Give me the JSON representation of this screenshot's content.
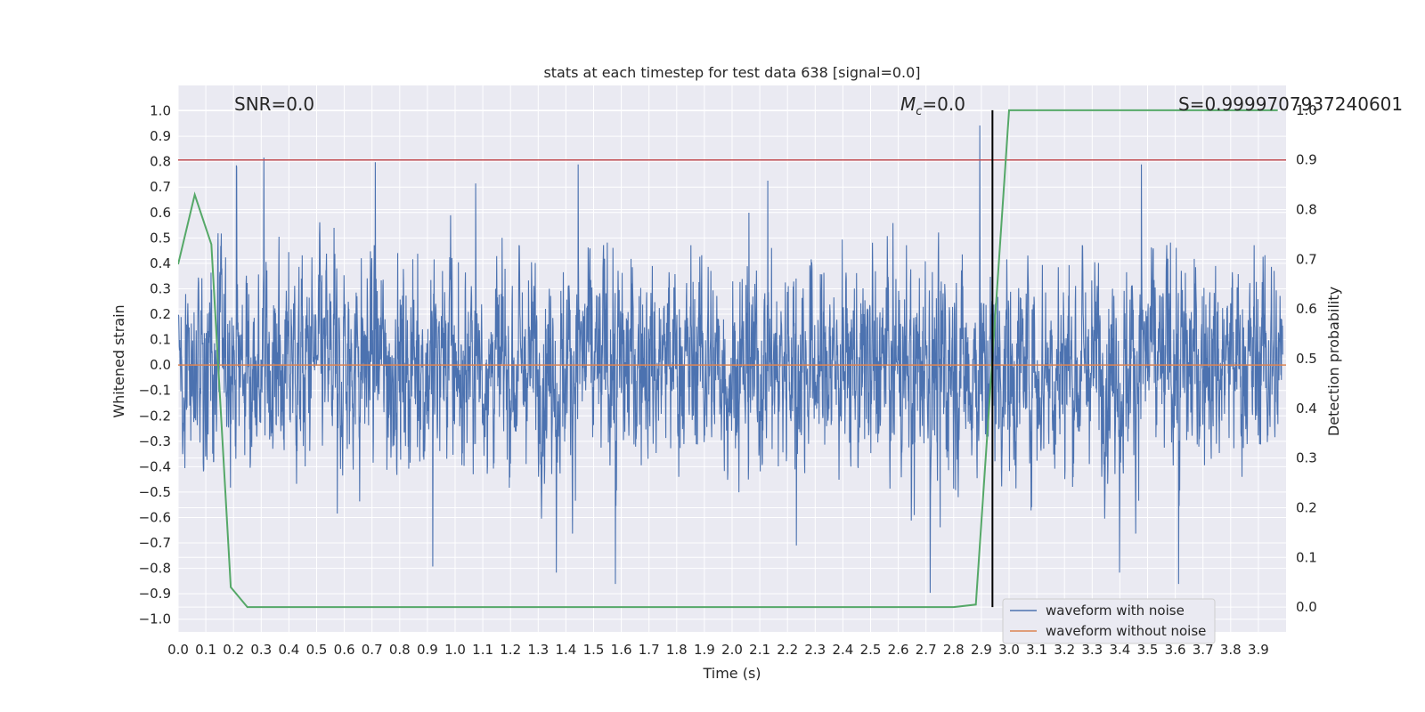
{
  "chart_data": {
    "type": "line",
    "title": "stats at each timestep for test data 638 [signal=0.0]",
    "xlabel": "Time (s)",
    "ylabel": "Whitened strain",
    "y2label": "Detection probability",
    "xlim": [
      0.0,
      4.0
    ],
    "ylim": [
      -1.05,
      1.1
    ],
    "y2lim": [
      -0.05,
      1.05
    ],
    "xticks": [
      "0.0",
      "0.1",
      "0.2",
      "0.3",
      "0.4",
      "0.5",
      "0.6",
      "0.7",
      "0.8",
      "0.9",
      "1.0",
      "1.1",
      "1.2",
      "1.3",
      "1.4",
      "1.5",
      "1.6",
      "1.7",
      "1.8",
      "1.9",
      "2.0",
      "2.1",
      "2.2",
      "2.3",
      "2.4",
      "2.5",
      "2.6",
      "2.7",
      "2.8",
      "2.9",
      "3.0",
      "3.1",
      "3.2",
      "3.3",
      "3.4",
      "3.5",
      "3.6",
      "3.7",
      "3.8",
      "3.9"
    ],
    "yticks": [
      "1.0",
      "0.9",
      "0.8",
      "0.7",
      "0.6",
      "0.5",
      "0.4",
      "0.3",
      "0.2",
      "0.1",
      "0.0",
      "−0.1",
      "−0.2",
      "−0.3",
      "−0.4",
      "−0.5",
      "−0.6",
      "−0.7",
      "−0.8",
      "−0.9",
      "−1.0"
    ],
    "y2ticks": [
      "1.0",
      "0.9",
      "0.8",
      "0.7",
      "0.6",
      "0.5",
      "0.4",
      "0.3",
      "0.2",
      "0.1",
      "0.0"
    ],
    "annotations": {
      "snr": "SNR=0.0",
      "mc_symbol": "M",
      "mc_sub": "c",
      "mc_value": "=0.0",
      "s_value": "S=0.9999707937240601"
    },
    "legend": {
      "position": "lower-right",
      "entries": [
        {
          "label": "waveform with noise",
          "color": "#4c72b0"
        },
        {
          "label": "waveform without noise",
          "color": "#dd8452"
        }
      ]
    },
    "series": [
      {
        "name": "waveform with noise",
        "color": "#4c72b0",
        "axis": "left",
        "description": "noise samples spanning approx -0.8 to 1.0",
        "amplitude_range": [
          -0.9,
          1.0
        ]
      },
      {
        "name": "waveform without noise",
        "color": "#dd8452",
        "axis": "left",
        "constant": 0.0
      },
      {
        "name": "detection probability",
        "color": "#55a868",
        "axis": "right",
        "x": [
          0.0,
          0.06,
          0.12,
          0.19,
          0.25,
          2.8,
          2.88,
          3.0,
          3.97
        ],
        "y": [
          0.69,
          0.83,
          0.73,
          0.04,
          0.0,
          0.0,
          0.005,
          1.0,
          1.0
        ]
      }
    ],
    "threshold_line": {
      "axis": "right",
      "value": 0.9,
      "color": "#c44e52"
    },
    "marker_line": {
      "x": 2.94,
      "color": "#000000"
    },
    "colors": {
      "background": "#eaeaf2",
      "grid": "#ffffff"
    }
  }
}
